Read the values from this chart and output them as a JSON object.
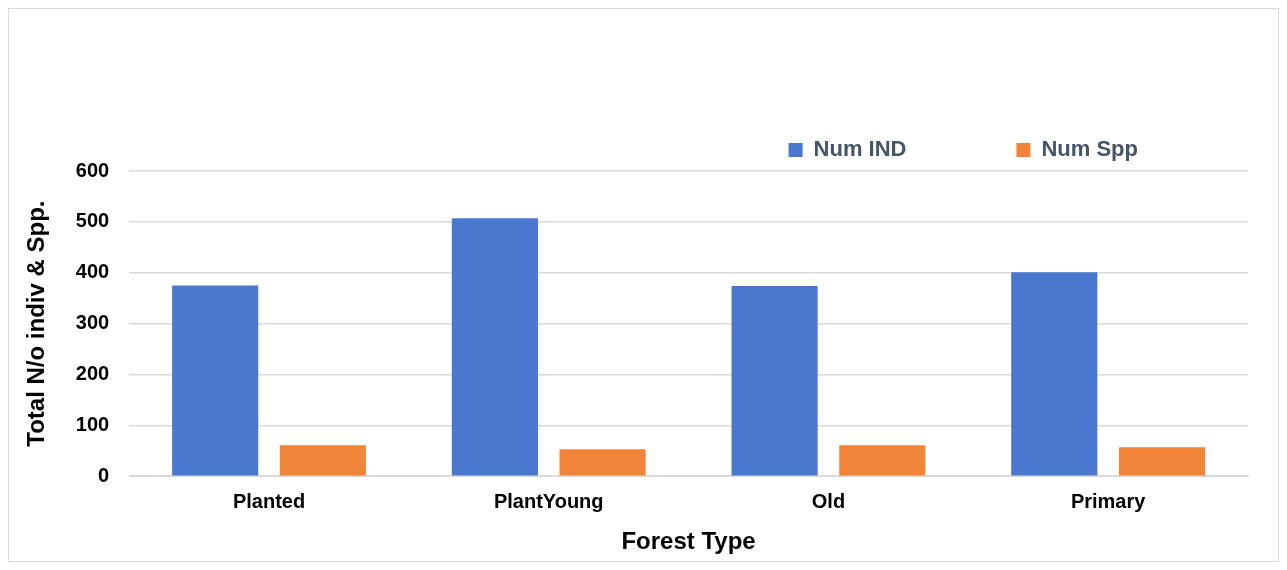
{
  "chart_data": {
    "type": "bar",
    "xlabel": "Forest Type",
    "ylabel": "Total N/o indiv & Spp.",
    "categories": [
      "Planted",
      "PlantYoung",
      "Old",
      "Primary"
    ],
    "series": [
      {
        "name": "Num IND",
        "color": "#4a78cf",
        "values": [
          375,
          507,
          374,
          401
        ]
      },
      {
        "name": "Num Spp",
        "color": "#f08539",
        "values": [
          61,
          53,
          61,
          57
        ]
      }
    ],
    "ylim": [
      0,
      600
    ],
    "yticks": [
      0,
      100,
      200,
      300,
      400,
      500,
      600
    ],
    "grid": "y",
    "legend": "top right"
  }
}
